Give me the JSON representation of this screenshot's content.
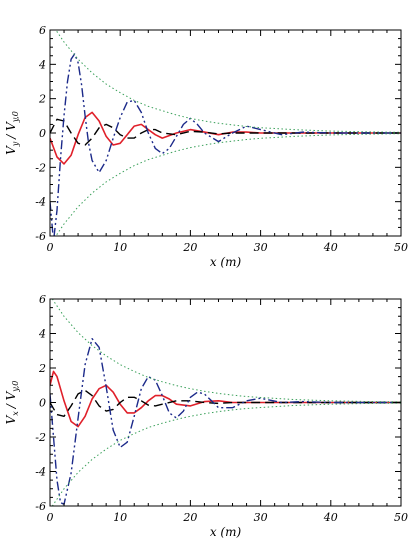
{
  "chart_data": [
    {
      "type": "line",
      "xlabel": "x (m)",
      "ylabel": "V_y / V_y,0",
      "ylabel_parts": [
        "V",
        "y",
        "/ V",
        "y,0"
      ],
      "xlim": [
        0,
        50
      ],
      "ylim": [
        -6,
        6
      ],
      "xticks": [
        0,
        10,
        20,
        30,
        40,
        50
      ],
      "yticks": [
        -6,
        -4,
        -2,
        0,
        2,
        4,
        6
      ],
      "grid": false,
      "legend": "none",
      "series": [
        {
          "style": "solid",
          "color": "#e0202a",
          "x": [
            0,
            1,
            2,
            3,
            4,
            5,
            6,
            7,
            8,
            9,
            10,
            11,
            12,
            13,
            14,
            15,
            16,
            18,
            20,
            22,
            24,
            26,
            28,
            30,
            35,
            40,
            45,
            50
          ],
          "y": [
            -0.3,
            -1.4,
            -1.8,
            -1.3,
            -0.1,
            0.9,
            1.2,
            0.7,
            -0.2,
            -0.7,
            -0.6,
            -0.1,
            0.4,
            0.5,
            0.2,
            -0.1,
            -0.3,
            0.0,
            0.2,
            0.05,
            -0.1,
            0.05,
            0.05,
            0.0,
            0.0,
            0.0,
            0.0,
            0.0
          ]
        },
        {
          "style": "dashed",
          "color": "#000000",
          "x": [
            0,
            1,
            2,
            3,
            4,
            5,
            6,
            7,
            8,
            9,
            10,
            11,
            12,
            13,
            14,
            15,
            16,
            18,
            20,
            22,
            24,
            26,
            28,
            30,
            35,
            40,
            45,
            50
          ],
          "y": [
            0.0,
            0.8,
            0.7,
            0.0,
            -0.6,
            -0.7,
            -0.3,
            0.3,
            0.5,
            0.3,
            -0.1,
            -0.3,
            -0.3,
            0.0,
            0.2,
            0.2,
            0.0,
            -0.1,
            0.1,
            0.05,
            -0.05,
            0.0,
            0.0,
            0.0,
            0.0,
            0.0,
            0.0,
            0.0
          ]
        },
        {
          "style": "dash-dot-dot",
          "color": "#1c2a8a",
          "x": [
            0,
            0.5,
            1,
            1.5,
            2,
            2.5,
            3,
            3.5,
            4,
            4.5,
            5,
            5.5,
            6,
            7,
            8,
            9,
            10,
            11,
            12,
            13,
            14,
            15,
            16,
            17,
            18,
            19,
            20,
            21,
            22,
            24,
            26,
            28,
            30,
            33,
            36,
            40,
            45,
            50
          ],
          "y": [
            -4.0,
            -6.3,
            -4.5,
            -1.5,
            1.0,
            3.0,
            4.3,
            4.6,
            4.1,
            2.8,
            1.0,
            -0.6,
            -1.6,
            -2.3,
            -1.6,
            -0.3,
            0.9,
            1.8,
            1.9,
            1.2,
            0.0,
            -0.9,
            -1.2,
            -0.9,
            -0.2,
            0.5,
            0.85,
            0.5,
            0.0,
            -0.5,
            0.0,
            0.4,
            0.2,
            -0.1,
            0.05,
            0.0,
            0.0,
            0.0
          ]
        },
        {
          "style": "dotted",
          "color": "#3aa05a",
          "x": [
            0,
            2,
            4,
            6,
            8,
            10,
            12,
            14,
            16,
            18,
            20,
            22,
            24,
            26,
            28,
            30,
            35,
            40,
            45,
            50
          ],
          "y": [
            6.5,
            5.3,
            4.3,
            3.5,
            2.85,
            2.35,
            1.9,
            1.55,
            1.3,
            1.05,
            0.85,
            0.7,
            0.57,
            0.47,
            0.38,
            0.31,
            0.19,
            0.11,
            0.07,
            0.04
          ]
        },
        {
          "style": "dotted",
          "color": "#3aa05a",
          "x": [
            0,
            2,
            4,
            6,
            8,
            10,
            12,
            14,
            16,
            18,
            20,
            22,
            24,
            26,
            28,
            30,
            35,
            40,
            45,
            50
          ],
          "y": [
            -6.5,
            -5.3,
            -4.3,
            -3.5,
            -2.85,
            -2.35,
            -1.9,
            -1.55,
            -1.3,
            -1.05,
            -0.85,
            -0.7,
            -0.57,
            -0.47,
            -0.38,
            -0.31,
            -0.19,
            -0.11,
            -0.07,
            -0.04
          ]
        }
      ]
    },
    {
      "type": "line",
      "xlabel": "x (m)",
      "ylabel": "V_x / V_y,0",
      "ylabel_parts": [
        "V",
        "x",
        "/ V",
        "y,0"
      ],
      "xlim": [
        0,
        50
      ],
      "ylim": [
        -6,
        6
      ],
      "xticks": [
        0,
        10,
        20,
        30,
        40,
        50
      ],
      "yticks": [
        -6,
        -4,
        -2,
        0,
        2,
        4,
        6
      ],
      "grid": false,
      "legend": "none",
      "series": [
        {
          "style": "solid",
          "color": "#e0202a",
          "x": [
            0,
            0.5,
            1,
            2,
            3,
            4,
            5,
            6,
            7,
            8,
            9,
            10,
            11,
            12,
            13,
            14,
            15,
            16,
            17,
            18,
            20,
            22,
            24,
            26,
            28,
            30,
            35,
            40,
            45,
            50
          ],
          "y": [
            1.0,
            1.8,
            1.5,
            0.1,
            -1.1,
            -1.4,
            -0.8,
            0.2,
            0.8,
            1.0,
            0.6,
            -0.1,
            -0.6,
            -0.6,
            -0.3,
            0.1,
            0.4,
            0.4,
            0.2,
            -0.1,
            -0.2,
            0.05,
            0.1,
            0.0,
            0.0,
            0.0,
            0.0,
            0.0,
            0.0,
            0.0
          ]
        },
        {
          "style": "dashed",
          "color": "#000000",
          "x": [
            0,
            1,
            2,
            3,
            4,
            5,
            6,
            7,
            8,
            9,
            10,
            11,
            12,
            13,
            14,
            15,
            16,
            18,
            20,
            22,
            24,
            26,
            28,
            30,
            35,
            40,
            45,
            50
          ],
          "y": [
            0.0,
            -0.7,
            -0.8,
            -0.2,
            0.5,
            0.7,
            0.4,
            -0.2,
            -0.5,
            -0.4,
            0.0,
            0.3,
            0.3,
            0.1,
            -0.15,
            -0.2,
            -0.1,
            0.1,
            0.1,
            0.0,
            -0.05,
            0.0,
            0.0,
            0.0,
            0.0,
            0.0,
            0.0,
            0.0
          ]
        },
        {
          "style": "dash-dot-dot",
          "color": "#1c2a8a",
          "x": [
            0,
            0.5,
            1,
            1.5,
            2,
            3,
            4,
            5,
            6,
            7,
            8,
            9,
            10,
            11,
            12,
            13,
            14,
            15,
            16,
            17,
            18,
            19,
            20,
            21,
            22,
            23,
            24,
            26,
            28,
            30,
            33,
            36,
            40,
            45,
            50
          ],
          "y": [
            0.5,
            -2.0,
            -4.5,
            -5.8,
            -5.9,
            -4.1,
            -0.9,
            2.2,
            3.7,
            3.2,
            0.9,
            -1.6,
            -2.6,
            -2.3,
            -0.8,
            0.8,
            1.5,
            1.3,
            0.4,
            -0.6,
            -0.9,
            -0.5,
            0.3,
            0.6,
            0.5,
            0.1,
            -0.3,
            -0.3,
            0.1,
            0.25,
            0.0,
            0.05,
            0.0,
            0.0,
            0.0
          ]
        },
        {
          "style": "dotted",
          "color": "#3aa05a",
          "x": [
            0,
            2,
            4,
            6,
            8,
            10,
            12,
            14,
            16,
            18,
            20,
            22,
            24,
            26,
            28,
            30,
            35,
            40,
            45,
            50
          ],
          "y": [
            6.2,
            5.0,
            4.05,
            3.3,
            2.7,
            2.2,
            1.8,
            1.45,
            1.2,
            0.98,
            0.8,
            0.65,
            0.53,
            0.43,
            0.35,
            0.29,
            0.17,
            0.1,
            0.06,
            0.04
          ]
        },
        {
          "style": "dotted",
          "color": "#3aa05a",
          "x": [
            0,
            2,
            4,
            6,
            8,
            10,
            12,
            14,
            16,
            18,
            20,
            22,
            24,
            26,
            28,
            30,
            35,
            40,
            45,
            50
          ],
          "y": [
            -6.2,
            -5.0,
            -4.05,
            -3.3,
            -2.7,
            -2.2,
            -1.8,
            -1.45,
            -1.2,
            -0.98,
            -0.8,
            -0.65,
            -0.53,
            -0.43,
            -0.35,
            -0.29,
            -0.17,
            -0.1,
            -0.06,
            -0.04
          ]
        }
      ]
    }
  ]
}
